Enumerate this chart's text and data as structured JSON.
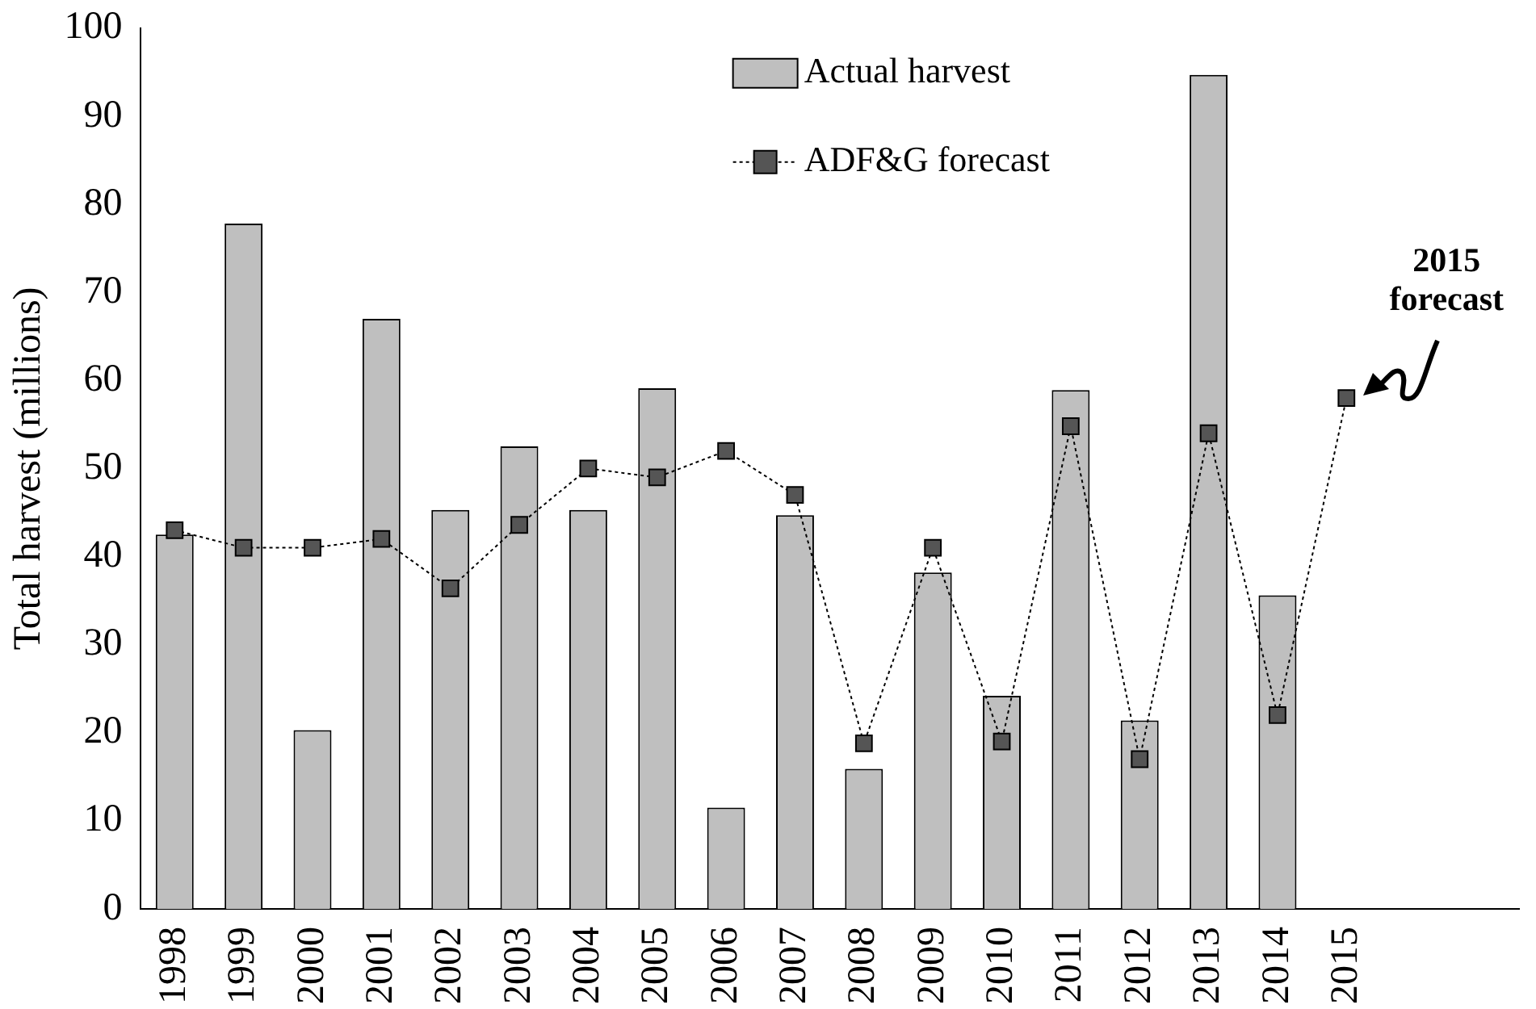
{
  "chart_data": {
    "type": "bar",
    "ylabel": "Total harvest (millions)",
    "categories": [
      "1998",
      "1999",
      "2000",
      "2001",
      "2002",
      "2003",
      "2004",
      "2005",
      "2006",
      "2007",
      "2008",
      "2009",
      "2010",
      "2011",
      "2012",
      "2013",
      "2014",
      "2015",
      null,
      null
    ],
    "series": [
      {
        "name": "Actual harvest",
        "color": "#bfbfbf",
        "values": [
          42.5,
          77.8,
          20.3,
          67,
          45.3,
          52.5,
          45.3,
          59.1,
          11.5,
          44.7,
          15.9,
          38.2,
          24.2,
          58.9,
          21.4,
          94.7,
          35.6,
          null,
          null,
          null
        ]
      },
      {
        "name": "ADF&G forecast",
        "type": "line",
        "color": "#000000",
        "marker": "square",
        "line_style": "dotted",
        "values": [
          43,
          41,
          41,
          42,
          36.4,
          43.6,
          50,
          49,
          52,
          47,
          18.8,
          41,
          19,
          54.8,
          17,
          54,
          22,
          58,
          null,
          null
        ]
      }
    ],
    "ylim": [
      0,
      100
    ],
    "yticks": [
      0,
      10,
      20,
      30,
      40,
      50,
      60,
      70,
      80,
      90,
      100
    ],
    "grid": false,
    "legend": "top",
    "annotations": [
      {
        "text": "2015 forecast",
        "x": "2015",
        "y": 58
      }
    ]
  }
}
